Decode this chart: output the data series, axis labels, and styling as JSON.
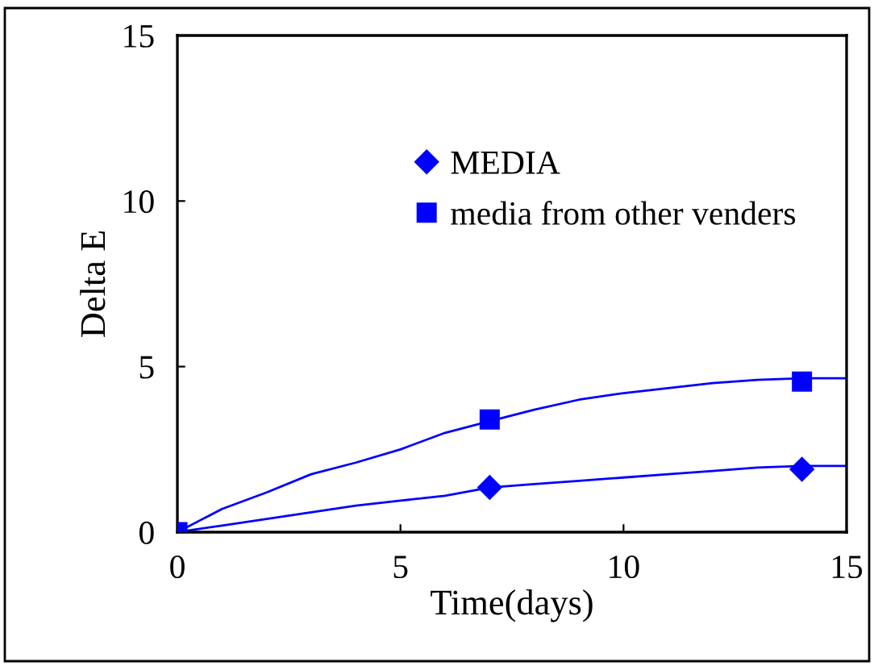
{
  "chart_data": {
    "type": "scatter",
    "xlabel": "Time(days)",
    "ylabel": "Delta E",
    "xlim": [
      0,
      15
    ],
    "xticks": [
      0,
      5,
      10,
      15
    ],
    "ylim": [
      0,
      15
    ],
    "yticks": [
      0,
      5,
      10,
      15
    ],
    "grid": false,
    "legend": "top right",
    "series": [
      {
        "name": "MEDIA",
        "color": "#0000ff",
        "marker": "diamond",
        "x": [
          7,
          14
        ],
        "values": [
          1.35,
          1.9
        ]
      },
      {
        "name": "media from other venders",
        "color": "#0000ff",
        "marker": "square",
        "x": [
          0,
          7,
          14
        ],
        "values": [
          0,
          3.4,
          4.55
        ]
      },
      {
        "type": "line",
        "color": "#0000ff",
        "marker": "none",
        "x": [
          0,
          1,
          2,
          3,
          4,
          5,
          6,
          7,
          8,
          9,
          10,
          11,
          12,
          13,
          14,
          15
        ],
        "values": [
          0,
          0.2,
          0.4,
          0.6,
          0.8,
          0.95,
          1.1,
          1.35,
          1.45,
          1.55,
          1.65,
          1.75,
          1.85,
          1.95,
          2.0,
          2.0
        ]
      },
      {
        "type": "line",
        "color": "#0000ff",
        "marker": "none",
        "x": [
          0,
          1,
          2,
          3,
          4,
          5,
          6,
          7,
          8,
          9,
          10,
          11,
          12,
          13,
          14,
          15
        ],
        "values": [
          0,
          0.7,
          1.2,
          1.75,
          2.1,
          2.5,
          3.0,
          3.35,
          3.7,
          4.0,
          4.2,
          4.35,
          4.5,
          4.6,
          4.65,
          4.65
        ]
      }
    ]
  }
}
